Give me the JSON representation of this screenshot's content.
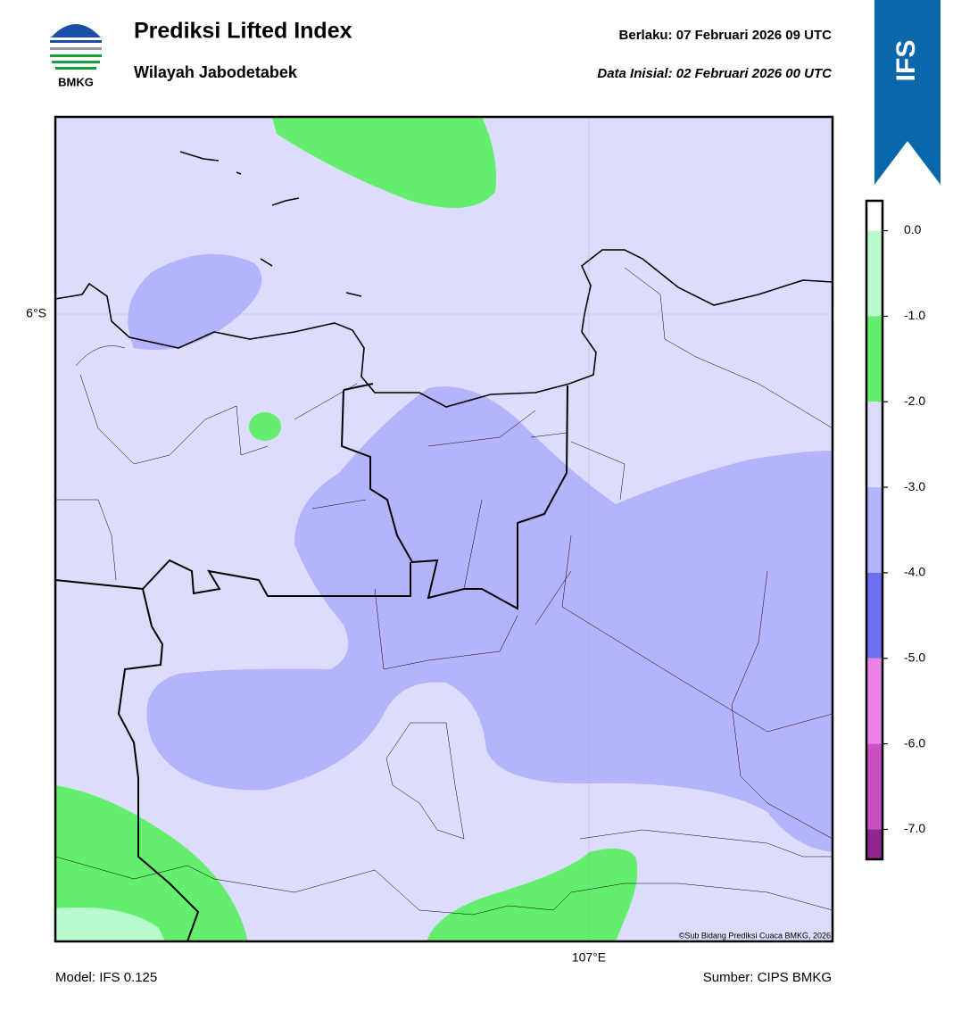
{
  "header": {
    "logo_text": "BMKG",
    "title": "Prediksi Lifted Index",
    "subtitle": "Wilayah Jabodetabek",
    "valid": "Berlaku:  07 Februari 2026 09 UTC",
    "init": "Data Inisial:  02 Februari 2026 00 UTC",
    "badge": "IFS"
  },
  "map": {
    "lat_label": "6°S",
    "lon_label": "107°E",
    "credit": "©Sub Bidang Prediksi Cuaca BMKG, 2026"
  },
  "colorbar": {
    "lim": [
      -7.35,
      0.35
    ],
    "ticks": [
      {
        "value": 0,
        "label": "0.0"
      },
      {
        "value": -1,
        "label": "-1.0"
      },
      {
        "value": -2,
        "label": "-2.0"
      },
      {
        "value": -3,
        "label": "-3.0"
      },
      {
        "value": -4,
        "label": "-4.0"
      },
      {
        "value": -5,
        "label": "-5.0"
      },
      {
        "value": -6,
        "label": "-6.0"
      },
      {
        "value": -7,
        "label": "-7.0"
      }
    ],
    "bands": [
      {
        "from": 0.35,
        "to": 0,
        "color": "#ffffff"
      },
      {
        "from": 0,
        "to": -1,
        "color": "#b9fbcc"
      },
      {
        "from": -1,
        "to": -2,
        "color": "#64ee6e"
      },
      {
        "from": -2,
        "to": -3,
        "color": "#dcdcfc"
      },
      {
        "from": -3,
        "to": -4,
        "color": "#b4b4fc"
      },
      {
        "from": -4,
        "to": -5,
        "color": "#6e6ef0"
      },
      {
        "from": -5,
        "to": -6,
        "color": "#ea82e6"
      },
      {
        "from": -6,
        "to": -7,
        "color": "#c850c0"
      },
      {
        "from": -7,
        "to": -7.35,
        "color": "#8c2890"
      }
    ]
  },
  "footer": {
    "model": "Model: IFS 0.125",
    "source": "Sumber: CIPS BMKG"
  }
}
